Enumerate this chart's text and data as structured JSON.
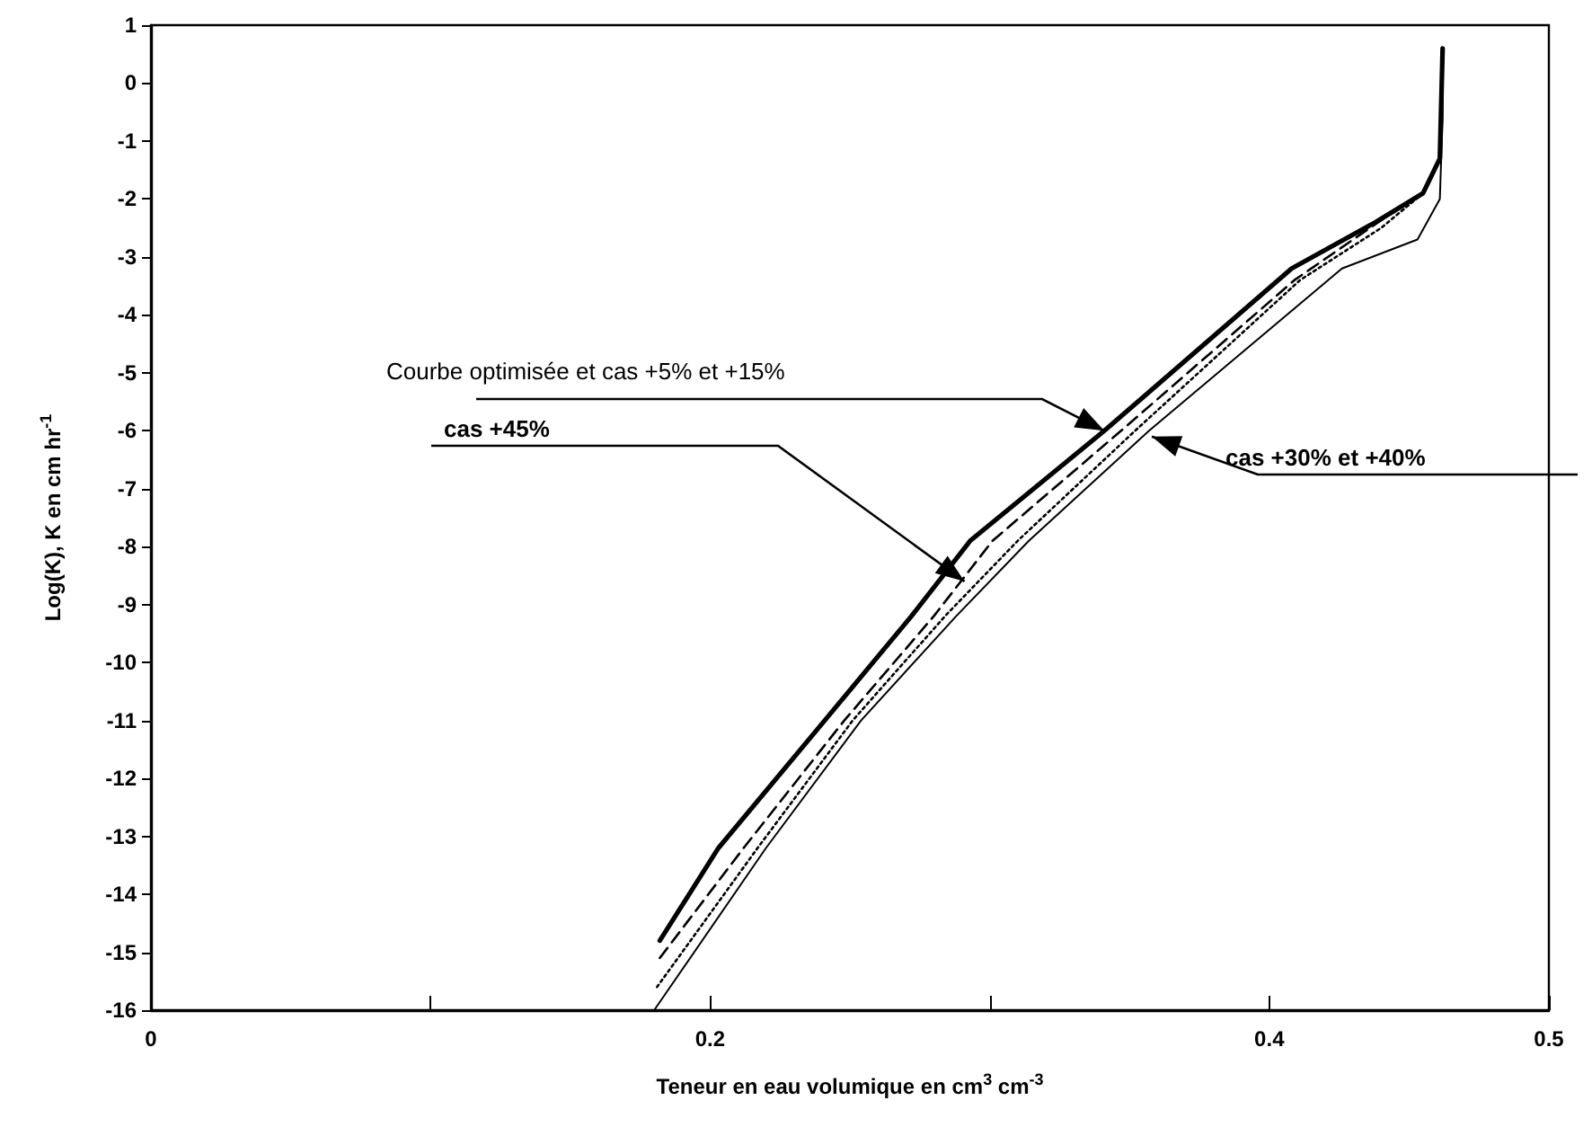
{
  "chart_data": {
    "type": "line",
    "xlabel": "Teneur en eau volumique en cm$^{3}$ cm$^{-3}$",
    "ylabel": "Log(K), K en cm hr$^{-1}$",
    "xlim": [
      0,
      0.5
    ],
    "xticks": [
      0,
      {
        "value": 0.1,
        "label": null
      },
      0.2,
      {
        "value": 0.3,
        "label": null
      },
      0.4,
      0.5
    ],
    "ylim": [
      -16,
      1
    ],
    "yticks": [
      -16,
      -15,
      -14,
      -13,
      -12,
      -11,
      -10,
      -9,
      -8,
      -7,
      -6,
      -5,
      -4,
      -3,
      -2,
      -1,
      0,
      1
    ],
    "marker": "none",
    "series": [
      {
        "color": "#000000",
        "line_style": "solid",
        "x": [
          0.182,
          0.203,
          0.241,
          0.272,
          0.293,
          0.341,
          0.408,
          0.438,
          0.455,
          0.461,
          0.462
        ],
        "values": [
          -14.8,
          -13.2,
          -11.0,
          -9.2,
          -7.9,
          -6.0,
          -3.2,
          -2.4,
          -1.9,
          -1.3,
          0.6
        ]
      },
      {
        "color": "#000000",
        "line_style": "dashed",
        "x": [
          0.182,
          0.212,
          0.248,
          0.28,
          0.301,
          0.347,
          0.409,
          0.439,
          0.455,
          0.461,
          0.462
        ],
        "values": [
          -15.1,
          -13.2,
          -11.0,
          -9.2,
          -7.9,
          -6.0,
          -3.4,
          -2.4,
          -1.9,
          -1.3,
          0.6
        ]
      },
      {
        "color": "#000000",
        "line_style": "dotted",
        "x": [
          0.181,
          0.217,
          0.251,
          0.284,
          0.31,
          0.352,
          0.411,
          0.44,
          0.455,
          0.461,
          0.462
        ],
        "values": [
          -15.6,
          -13.2,
          -11.0,
          -9.2,
          -7.9,
          -6.0,
          -3.4,
          -2.5,
          -1.9,
          -1.3,
          0.6
        ]
      },
      {
        "color": "#000000",
        "line_style": "solid",
        "x": [
          0.18,
          0.22,
          0.254,
          0.288,
          0.314,
          0.357,
          0.426,
          0.453,
          0.461,
          0.462,
          0.462
        ],
        "values": [
          -16.0,
          -13.2,
          -11.0,
          -9.2,
          -7.9,
          -6.0,
          -3.2,
          -2.7,
          -2.0,
          -0.6,
          0.6
        ]
      }
    ],
    "annotations": [
      {
        "text": "Courbe optimisée et cas +5% et +15%",
        "x": 0.341,
        "y": -6.0
      },
      {
        "text": "cas +45%",
        "x": 0.291,
        "y": -8.6
      },
      {
        "text": "cas +30% et +40%",
        "x": 0.358,
        "y": -6.1
      }
    ]
  }
}
